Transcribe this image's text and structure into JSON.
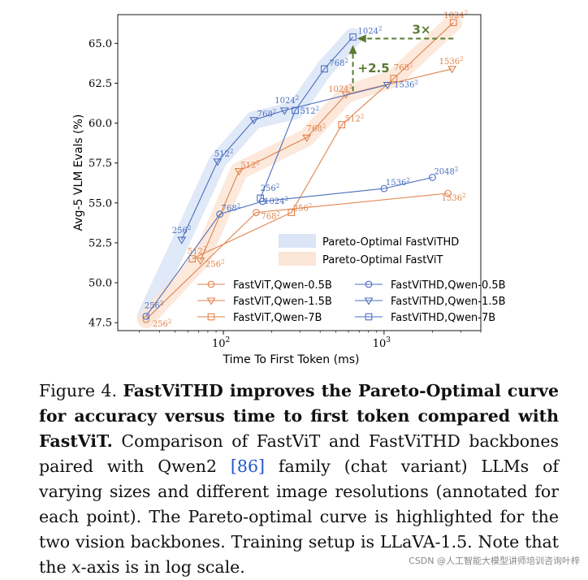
{
  "chart_data": {
    "type": "line",
    "title": "",
    "xlabel": "Time To First Token (ms)",
    "ylabel": "Avg-5 VLM Evals (%)",
    "xscale": "log",
    "xlim": [
      22,
      4000
    ],
    "ylim": [
      47,
      66.8
    ],
    "xticks": [
      {
        "value": 100,
        "label": "10",
        "exp": "2"
      },
      {
        "value": 1000,
        "label": "10",
        "exp": "3"
      }
    ],
    "yticks": [
      47.5,
      50.0,
      52.5,
      55.0,
      57.5,
      60.0,
      62.5,
      65.0
    ],
    "ytick_labels": [
      "47.5",
      "50.0",
      "52.5",
      "55.0",
      "57.5",
      "60.0",
      "62.5",
      "65.0"
    ],
    "grid": false,
    "legend_position": "bottom-right",
    "colors": {
      "fastvit": "#e0824a",
      "fastvithd": "#4a6fc0",
      "pareto_fastvithd": "#dbe5f6",
      "pareto_fastvit": "#fbe5d6",
      "annotation": "#5a7a32"
    },
    "series": [
      {
        "name": "FastViT,Qwen-0.5B",
        "group": "fastvit",
        "marker": "circle",
        "points": [
          {
            "x": 33,
            "y": 47.7,
            "label": "256",
            "sup": "2"
          },
          {
            "x": 160,
            "y": 54.4,
            "label": "768",
            "sup": "2"
          },
          {
            "x": 2500,
            "y": 55.6,
            "label": "1536",
            "sup": "2"
          }
        ]
      },
      {
        "name": "FastViT,Qwen-1.5B",
        "group": "fastvit",
        "marker": "triangle",
        "points": [
          {
            "x": 72,
            "y": 51.4,
            "label": "256",
            "sup": "2"
          },
          {
            "x": 125,
            "y": 57.0,
            "label": "512",
            "sup": "2"
          },
          {
            "x": 330,
            "y": 59.1,
            "label": "768",
            "sup": "2"
          },
          {
            "x": 580,
            "y": 61.8,
            "label": "1024",
            "sup": "2"
          },
          {
            "x": 2650,
            "y": 63.4,
            "label": "1536",
            "sup": "2"
          }
        ]
      },
      {
        "name": "FastViT,Qwen-7B",
        "group": "fastvit",
        "marker": "square",
        "points": [
          {
            "x": 64,
            "y": 51.5,
            "label": "512",
            "sup": "2"
          },
          {
            "x": 265,
            "y": 54.4,
            "label": "256",
            "sup": "2"
          },
          {
            "x": 545,
            "y": 59.9,
            "label": "512",
            "sup": "2"
          },
          {
            "x": 1150,
            "y": 62.8,
            "label": "768",
            "sup": "2"
          },
          {
            "x": 2700,
            "y": 66.3,
            "label": "1024",
            "sup": "2"
          }
        ]
      },
      {
        "name": "FastViTHD,Qwen-0.5B",
        "group": "fastvithd",
        "marker": "circle",
        "points": [
          {
            "x": 33,
            "y": 47.9,
            "label": "256",
            "sup": "2"
          },
          {
            "x": 95,
            "y": 54.3,
            "label": "768",
            "sup": "2"
          },
          {
            "x": 175,
            "y": 55.1,
            "label": "1024",
            "sup": "2"
          },
          {
            "x": 1000,
            "y": 55.9,
            "label": "1536",
            "sup": "2"
          },
          {
            "x": 2000,
            "y": 56.6,
            "label": "2048",
            "sup": "2"
          }
        ]
      },
      {
        "name": "FastViTHD,Qwen-1.5B",
        "group": "fastvithd",
        "marker": "triangle",
        "points": [
          {
            "x": 55,
            "y": 52.7,
            "label": "256",
            "sup": "2"
          },
          {
            "x": 92,
            "y": 57.6,
            "label": "512",
            "sup": "2"
          },
          {
            "x": 155,
            "y": 60.2,
            "label": "768",
            "sup": "2"
          },
          {
            "x": 240,
            "y": 60.8,
            "label": "1024",
            "sup": "2"
          },
          {
            "x": 1050,
            "y": 62.4,
            "label": "1536",
            "sup": "2"
          }
        ]
      },
      {
        "name": "FastViTHD,Qwen-7B",
        "group": "fastvithd",
        "marker": "square",
        "points": [
          {
            "x": 170,
            "y": 55.3,
            "label": "256",
            "sup": "2"
          },
          {
            "x": 280,
            "y": 60.8,
            "label": "512",
            "sup": "2"
          },
          {
            "x": 425,
            "y": 63.4,
            "label": "768",
            "sup": "2"
          },
          {
            "x": 640,
            "y": 65.4,
            "label": "1024",
            "sup": "2"
          }
        ]
      }
    ],
    "pareto": [
      {
        "name": "Pareto-Optimal FastViTHD",
        "group": "pareto_fastvithd",
        "points": [
          [
            33,
            47.9
          ],
          [
            55,
            52.7
          ],
          [
            92,
            57.6
          ],
          [
            155,
            60.2
          ],
          [
            280,
            60.8
          ],
          [
            425,
            63.4
          ],
          [
            640,
            65.4
          ]
        ]
      },
      {
        "name": "Pareto-Optimal FastViT",
        "group": "pareto_fastvit",
        "points": [
          [
            33,
            47.7
          ],
          [
            72,
            51.4
          ],
          [
            125,
            57.0
          ],
          [
            330,
            59.1
          ],
          [
            580,
            61.8
          ],
          [
            1150,
            62.8
          ],
          [
            2700,
            66.3
          ]
        ]
      }
    ],
    "annotations": [
      {
        "text": "3×",
        "kind": "horizontal-arrow",
        "from": [
          2700,
          65.3
        ],
        "to": [
          680,
          65.3
        ]
      },
      {
        "text": "+2.5",
        "kind": "vertical-arrow",
        "from": [
          640,
          62.0
        ],
        "to": [
          640,
          64.9
        ]
      }
    ]
  },
  "caption": {
    "figure_label": "Figure 4.",
    "bold_text": "FastViTHD improves the Pareto-Optimal curve for accuracy versus time to first token compared with FastViT.",
    "body_before_ref": "Comparison of FastViT and FastViTHD backbones paired with Qwen2 ",
    "ref": "[86]",
    "body_after_ref": " family (chat variant) LLMs of varying sizes and different image resolutions (annotated for each point). The Pareto-optimal curve is highlighted for the two vision backbones. Training setup is LLaVA-1.5. Note that the ",
    "x_var": "x",
    "body_end": "-axis is in log scale."
  },
  "watermark": "CSDN @人工智能大模型讲师培训咨询叶梓"
}
